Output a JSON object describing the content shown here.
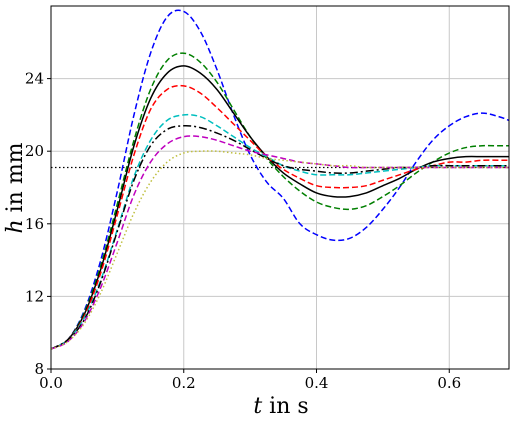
{
  "chart_data": {
    "type": "line",
    "title": "",
    "xlabel": {
      "symbol": "t",
      "rest": " in s"
    },
    "ylabel": {
      "symbol": "h",
      "rest": " in mm"
    },
    "xlim": [
      0.0,
      0.69
    ],
    "ylim": [
      8,
      28
    ],
    "grid": true,
    "xticks": [
      0.0,
      0.2,
      0.4,
      0.6
    ],
    "xtick_labels": [
      "0.0",
      "0.2",
      "0.4",
      "0.6"
    ],
    "yticks": [
      8,
      12,
      16,
      20,
      24
    ],
    "ytick_labels": [
      "8",
      "12",
      "16",
      "20",
      "24"
    ],
    "reference_line": {
      "y": 19.1,
      "color": "#000000",
      "style": "dotted"
    },
    "series": [
      {
        "color": "#0000ff",
        "style": "dashed",
        "x": [
          0,
          0.025,
          0.05,
          0.075,
          0.1,
          0.125,
          0.15,
          0.175,
          0.2,
          0.225,
          0.25,
          0.275,
          0.3,
          0.325,
          0.35,
          0.375,
          0.4,
          0.425,
          0.45,
          0.475,
          0.5,
          0.525,
          0.55,
          0.575,
          0.6,
          0.625,
          0.65,
          0.675,
          0.69
        ],
        "values": [
          9.1,
          9.6,
          11.2,
          14.0,
          17.8,
          22.0,
          25.4,
          27.4,
          27.7,
          26.6,
          24.5,
          22.0,
          19.8,
          18.3,
          17.4,
          16.0,
          15.4,
          15.1,
          15.2,
          15.8,
          16.8,
          18.0,
          19.4,
          20.6,
          21.4,
          21.9,
          22.1,
          21.9,
          21.7
        ]
      },
      {
        "color": "#007f00",
        "style": "dashed",
        "x": [
          0,
          0.025,
          0.05,
          0.075,
          0.1,
          0.125,
          0.15,
          0.175,
          0.2,
          0.225,
          0.25,
          0.275,
          0.3,
          0.325,
          0.35,
          0.375,
          0.4,
          0.425,
          0.45,
          0.475,
          0.5,
          0.525,
          0.55,
          0.575,
          0.6,
          0.625,
          0.65,
          0.675,
          0.69
        ],
        "values": [
          9.1,
          9.6,
          11.1,
          13.7,
          17.1,
          20.6,
          23.4,
          25.0,
          25.4,
          24.9,
          23.8,
          22.3,
          20.8,
          19.6,
          18.6,
          17.8,
          17.2,
          16.9,
          16.8,
          17.0,
          17.5,
          18.1,
          18.8,
          19.4,
          19.9,
          20.2,
          20.3,
          20.3,
          20.3
        ]
      },
      {
        "color": "#000000",
        "style": "solid",
        "x": [
          0,
          0.025,
          0.05,
          0.075,
          0.1,
          0.125,
          0.15,
          0.175,
          0.2,
          0.225,
          0.25,
          0.275,
          0.3,
          0.325,
          0.35,
          0.375,
          0.4,
          0.425,
          0.45,
          0.475,
          0.5,
          0.525,
          0.55,
          0.575,
          0.6,
          0.625,
          0.65,
          0.675,
          0.69
        ],
        "values": [
          9.1,
          9.6,
          11.0,
          13.5,
          16.8,
          20.3,
          22.9,
          24.3,
          24.7,
          24.3,
          23.4,
          22.1,
          20.8,
          19.7,
          18.8,
          18.2,
          17.7,
          17.5,
          17.5,
          17.7,
          18.1,
          18.5,
          19.0,
          19.4,
          19.6,
          19.7,
          19.7,
          19.7,
          19.7
        ]
      },
      {
        "color": "#ff0000",
        "style": "dashed",
        "x": [
          0,
          0.025,
          0.05,
          0.075,
          0.1,
          0.125,
          0.15,
          0.175,
          0.2,
          0.225,
          0.25,
          0.275,
          0.3,
          0.325,
          0.35,
          0.375,
          0.4,
          0.425,
          0.45,
          0.475,
          0.5,
          0.525,
          0.55,
          0.575,
          0.6,
          0.625,
          0.65,
          0.675,
          0.69
        ],
        "values": [
          9.1,
          9.6,
          10.9,
          13.3,
          16.5,
          19.8,
          22.3,
          23.4,
          23.6,
          23.2,
          22.4,
          21.5,
          20.6,
          19.7,
          19.0,
          18.5,
          18.1,
          18.0,
          18.0,
          18.1,
          18.4,
          18.7,
          19.0,
          19.2,
          19.4,
          19.4,
          19.5,
          19.5,
          19.5
        ]
      },
      {
        "color": "#00bfbf",
        "style": "dashed",
        "x": [
          0,
          0.025,
          0.05,
          0.075,
          0.1,
          0.125,
          0.15,
          0.175,
          0.2,
          0.225,
          0.25,
          0.275,
          0.3,
          0.325,
          0.35,
          0.375,
          0.4,
          0.425,
          0.45,
          0.475,
          0.5,
          0.525,
          0.55,
          0.575,
          0.6,
          0.625,
          0.65,
          0.675,
          0.69
        ],
        "values": [
          9.1,
          9.6,
          10.8,
          12.9,
          15.7,
          18.6,
          20.6,
          21.7,
          22.0,
          21.9,
          21.4,
          20.8,
          20.2,
          19.7,
          19.2,
          18.9,
          18.7,
          18.7,
          18.7,
          18.8,
          18.9,
          19.0,
          19.1,
          19.2,
          19.2,
          19.2,
          19.2,
          19.2,
          19.2
        ]
      },
      {
        "color": "#000000",
        "style": "dashdot",
        "x": [
          0,
          0.025,
          0.05,
          0.075,
          0.1,
          0.125,
          0.15,
          0.175,
          0.2,
          0.225,
          0.25,
          0.275,
          0.3,
          0.325,
          0.35,
          0.375,
          0.4,
          0.425,
          0.45,
          0.475,
          0.5,
          0.525,
          0.55,
          0.575,
          0.6,
          0.625,
          0.65,
          0.675,
          0.69
        ],
        "values": [
          9.1,
          9.6,
          10.7,
          12.8,
          15.6,
          18.4,
          20.3,
          21.2,
          21.4,
          21.3,
          21.0,
          20.6,
          20.1,
          19.6,
          19.2,
          19.0,
          18.9,
          18.8,
          18.8,
          18.9,
          19.0,
          19.1,
          19.1,
          19.2,
          19.2,
          19.2,
          19.2,
          19.2,
          19.2
        ]
      },
      {
        "color": "#bf00bf",
        "style": "dashed",
        "x": [
          0,
          0.025,
          0.05,
          0.075,
          0.1,
          0.125,
          0.15,
          0.175,
          0.2,
          0.225,
          0.25,
          0.275,
          0.3,
          0.325,
          0.35,
          0.375,
          0.4,
          0.425,
          0.45,
          0.475,
          0.5,
          0.525,
          0.55,
          0.575,
          0.6,
          0.625,
          0.65,
          0.675,
          0.69
        ],
        "values": [
          9.1,
          9.5,
          10.6,
          12.5,
          15.0,
          17.6,
          19.4,
          20.4,
          20.8,
          20.8,
          20.6,
          20.3,
          20.0,
          19.8,
          19.6,
          19.4,
          19.3,
          19.2,
          19.1,
          19.1,
          19.1,
          19.1,
          19.1,
          19.1,
          19.1,
          19.1,
          19.1,
          19.1,
          19.1
        ]
      },
      {
        "color": "#bfbf3f",
        "style": "dotted",
        "x": [
          0,
          0.025,
          0.05,
          0.075,
          0.1,
          0.125,
          0.15,
          0.175,
          0.2,
          0.225,
          0.25,
          0.275,
          0.3,
          0.325,
          0.35,
          0.375,
          0.4,
          0.425,
          0.45,
          0.475,
          0.5,
          0.525,
          0.55,
          0.575,
          0.6,
          0.625,
          0.65,
          0.675,
          0.69
        ],
        "values": [
          9.1,
          9.5,
          10.5,
          12.2,
          14.4,
          16.6,
          18.3,
          19.4,
          19.9,
          20.0,
          20.0,
          19.9,
          19.8,
          19.6,
          19.5,
          19.4,
          19.3,
          19.2,
          19.2,
          19.1,
          19.1,
          19.1,
          19.1,
          19.1,
          19.1,
          19.1,
          19.1,
          19.1,
          19.1
        ]
      }
    ]
  }
}
